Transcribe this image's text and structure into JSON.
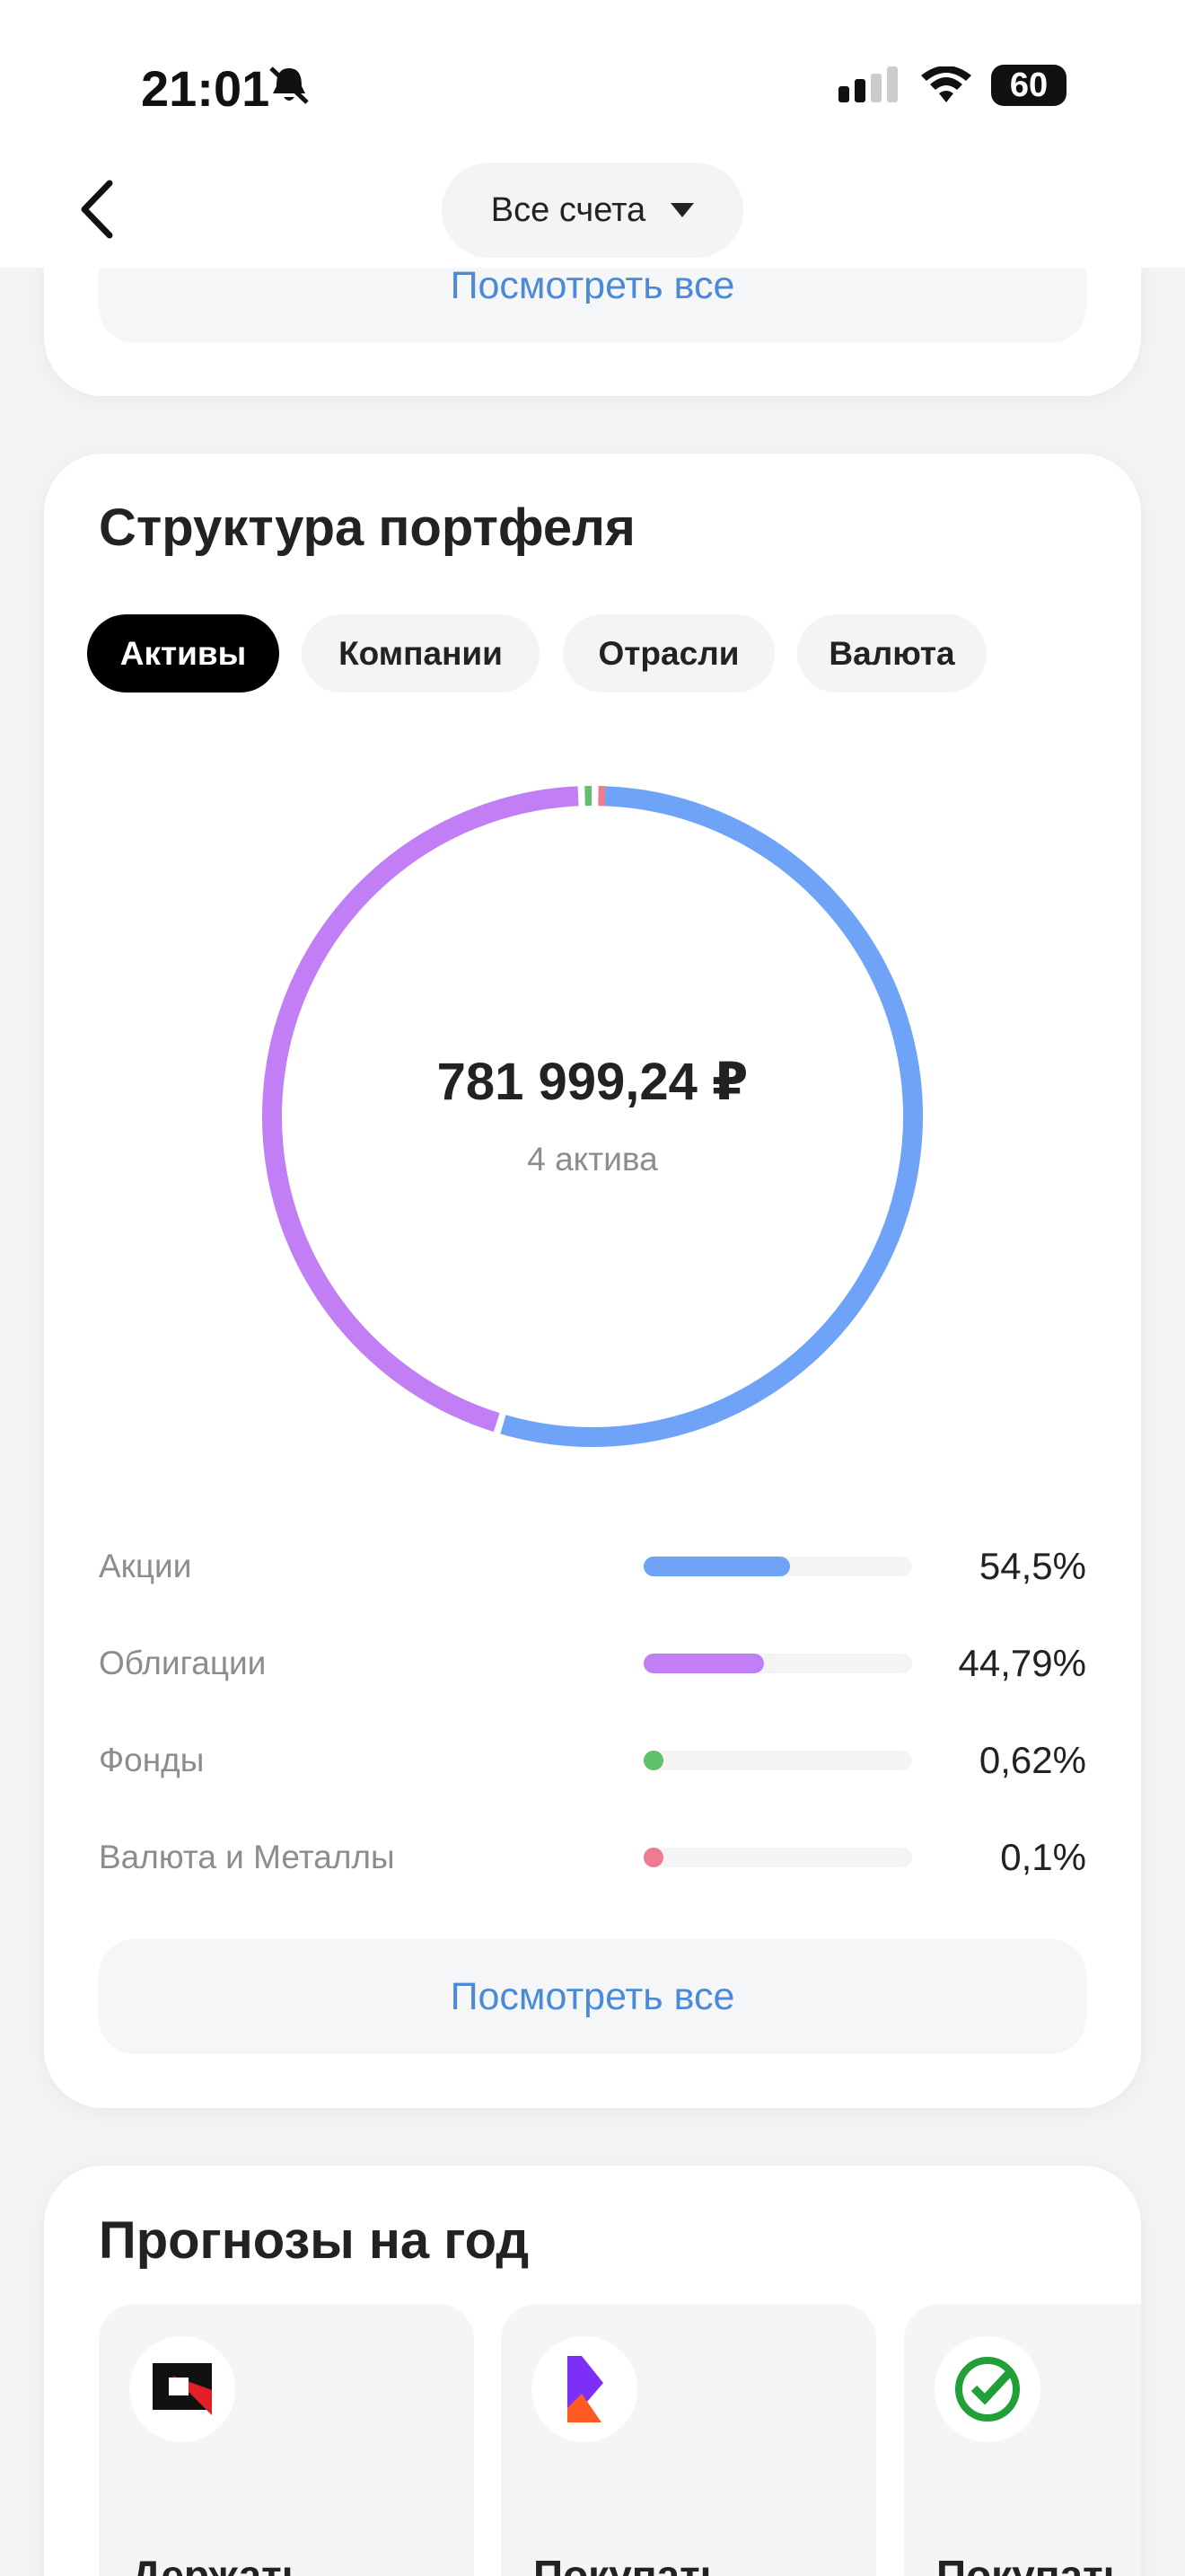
{
  "status_bar": {
    "time": "21:01",
    "battery": "60"
  },
  "header": {
    "account_selector": "Все счета"
  },
  "top_card": {
    "link": "Посмотреть все"
  },
  "portfolio": {
    "title": "Структура портфеля",
    "tabs": [
      "Активы",
      "Компании",
      "Отрасли",
      "Валюта"
    ],
    "total": "781 999,24 ₽",
    "subtitle": "4 актива",
    "link": "Посмотреть все"
  },
  "chart_data": {
    "type": "donut",
    "categories": [
      "Акции",
      "Облигации",
      "Фонды",
      "Валюта и Металлы"
    ],
    "values": [
      54.5,
      44.79,
      0.62,
      0.1
    ],
    "value_labels": [
      "54,5%",
      "44,79%",
      "0,62%",
      "0,1%"
    ],
    "colors": [
      "#6fa3f7",
      "#c27ef5",
      "#5fc169",
      "#f07a8e"
    ]
  },
  "forecasts": {
    "title": "Прогнозы на год",
    "cards": [
      {
        "label": "Держать"
      },
      {
        "label": "Покупать"
      },
      {
        "label": "Покупать"
      }
    ]
  }
}
